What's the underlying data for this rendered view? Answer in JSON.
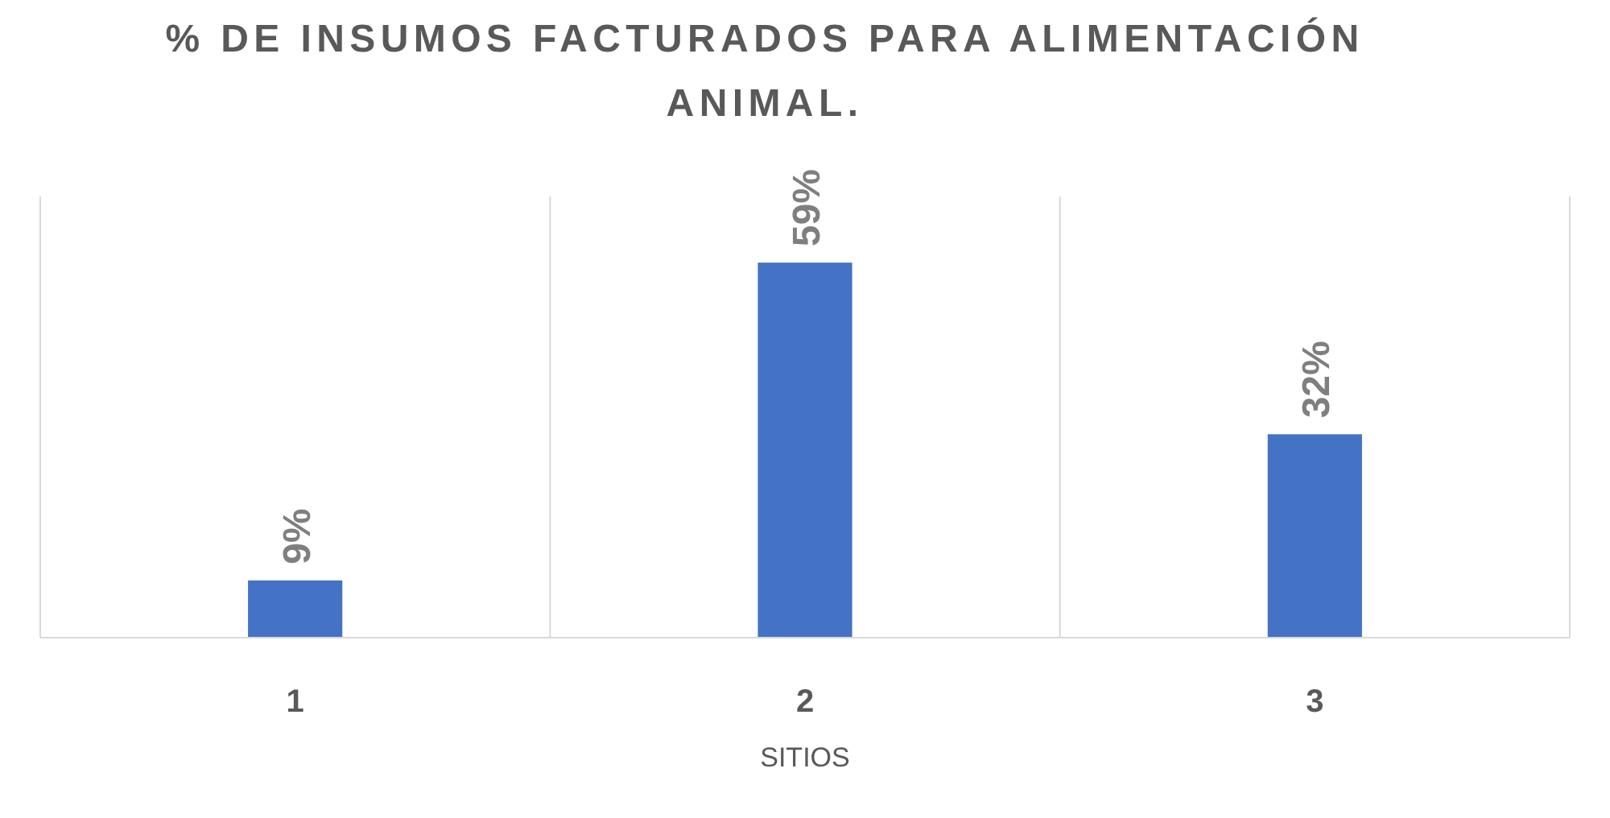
{
  "chart_data": {
    "type": "bar",
    "title": "% DE INSUMOS FACTURADOS PARA ALIMENTACIÓN ANIMAL.",
    "xlabel": "SITIOS",
    "categories": [
      "1",
      "2",
      "3"
    ],
    "values": [
      9,
      59,
      32
    ],
    "color": "#4472c4",
    "value_labels": [
      "9%",
      "59%",
      "32%"
    ],
    "grid": "x"
  }
}
